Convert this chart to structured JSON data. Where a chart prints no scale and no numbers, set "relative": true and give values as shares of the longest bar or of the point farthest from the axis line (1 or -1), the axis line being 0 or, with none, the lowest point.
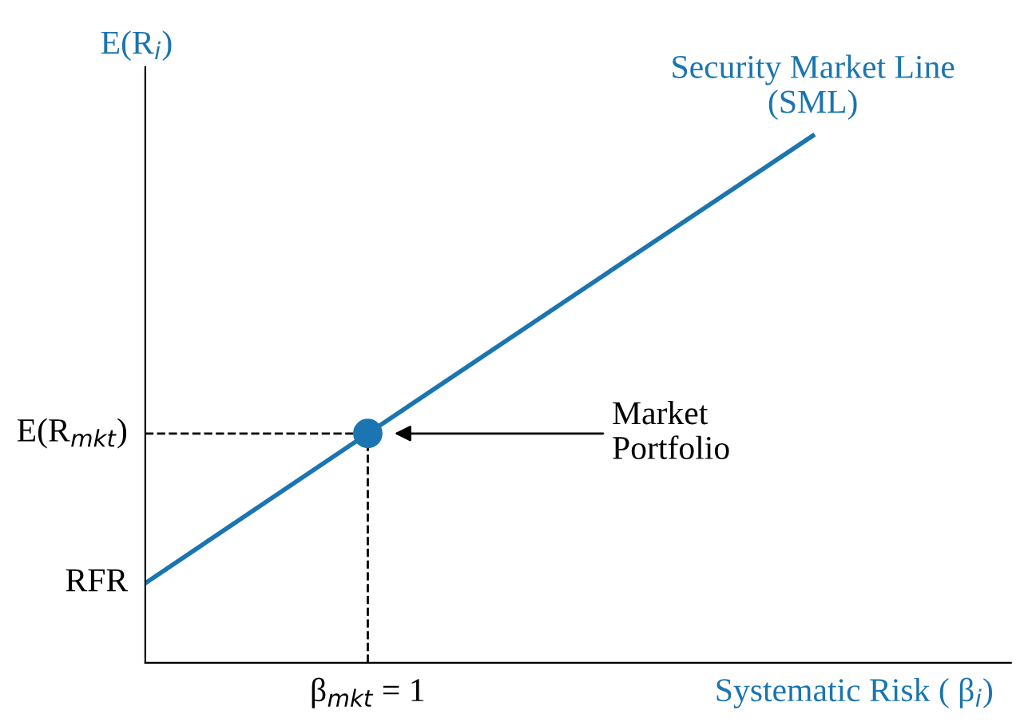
{
  "chart_data": {
    "type": "line",
    "relative": true,
    "xlabel": "Systematic Risk ( β$_{i}$)",
    "ylabel": "E(R$_{i}$)",
    "categories": [
      null,
      null,
      null,
      null
    ],
    "marker": "none",
    "line_style": "solid",
    "series": [
      {
        "name": "Security Market Line\n(SML)",
        "color": "#1a75b0",
        "values": [
          0.151,
          0.435,
          0.718,
          1.0
        ]
      }
    ],
    "ref_lines": [
      {
        "axis": "y",
        "value": 0.435,
        "label": "E(R$_{mkt}$)",
        "color": "#000000",
        "line_style": "dashed"
      }
    ],
    "annotations": [
      "RFR",
      "β$_{mkt}$ = 1",
      "Market\nPortfolio"
    ]
  }
}
